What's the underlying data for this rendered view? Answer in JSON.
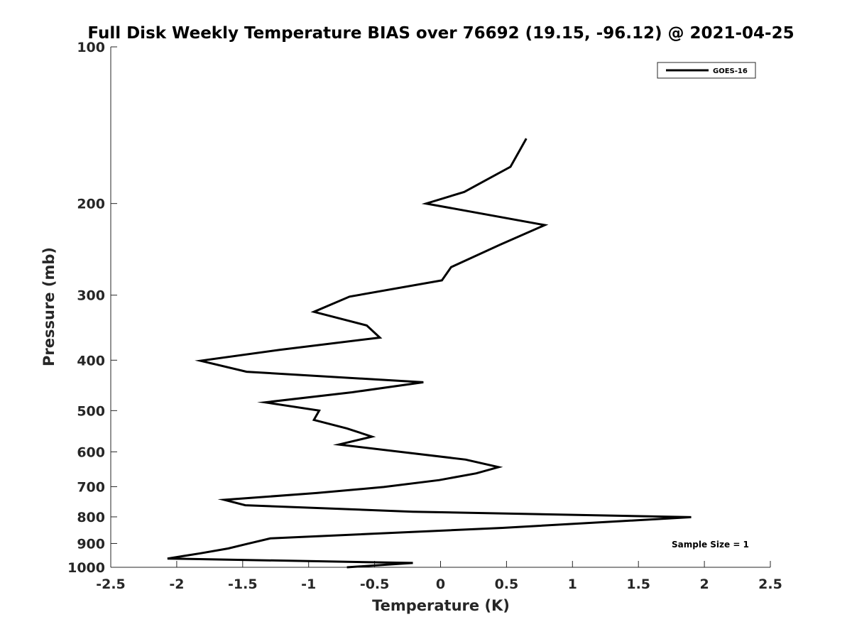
{
  "chart_data": {
    "type": "line",
    "title": "Full Disk Weekly Temperature BIAS over 76692 (19.15, -96.12) @ 2021-04-25",
    "xlabel": "Temperature (K)",
    "ylabel": "Pressure (mb)",
    "xlim": [
      -2.5,
      2.5
    ],
    "ylim": [
      100,
      1000
    ],
    "y_scale": "log",
    "y_reversed": true,
    "x_ticks": [
      "-2.5",
      "-2",
      "-1.5",
      "-1",
      "-0.5",
      "0",
      "0.5",
      "1",
      "1.5",
      "2",
      "2.5"
    ],
    "y_ticks": [
      "100",
      "200",
      "300",
      "400",
      "500",
      "600",
      "700",
      "800",
      "900",
      "1000"
    ],
    "grid": false,
    "legend_position": "top-right",
    "series": [
      {
        "name": "GOES-16",
        "color": "#000000",
        "points": [
          {
            "x": 0.65,
            "y": 150
          },
          {
            "x": 0.53,
            "y": 170
          },
          {
            "x": 0.18,
            "y": 190
          },
          {
            "x": -0.11,
            "y": 200
          },
          {
            "x": 0.79,
            "y": 220
          },
          {
            "x": 0.45,
            "y": 240
          },
          {
            "x": 0.08,
            "y": 265
          },
          {
            "x": 0.01,
            "y": 281
          },
          {
            "x": -0.69,
            "y": 302
          },
          {
            "x": -0.96,
            "y": 323
          },
          {
            "x": -0.56,
            "y": 343
          },
          {
            "x": -0.46,
            "y": 362
          },
          {
            "x": -1.22,
            "y": 382
          },
          {
            "x": -1.82,
            "y": 401
          },
          {
            "x": -1.47,
            "y": 421
          },
          {
            "x": -0.13,
            "y": 441
          },
          {
            "x": -0.67,
            "y": 461
          },
          {
            "x": -1.33,
            "y": 482
          },
          {
            "x": -0.92,
            "y": 500
          },
          {
            "x": -0.96,
            "y": 521
          },
          {
            "x": -0.71,
            "y": 541
          },
          {
            "x": -0.52,
            "y": 561
          },
          {
            "x": -0.77,
            "y": 581
          },
          {
            "x": 0.19,
            "y": 621
          },
          {
            "x": 0.44,
            "y": 642
          },
          {
            "x": 0.27,
            "y": 660
          },
          {
            "x": -0.01,
            "y": 680
          },
          {
            "x": -0.43,
            "y": 701
          },
          {
            "x": -0.94,
            "y": 720
          },
          {
            "x": -1.64,
            "y": 742
          },
          {
            "x": -1.48,
            "y": 760
          },
          {
            "x": -0.21,
            "y": 782
          },
          {
            "x": 1.9,
            "y": 801
          },
          {
            "x": 0.47,
            "y": 840
          },
          {
            "x": -1.29,
            "y": 880
          },
          {
            "x": -1.47,
            "y": 902
          },
          {
            "x": -1.61,
            "y": 920
          },
          {
            "x": -1.82,
            "y": 940
          },
          {
            "x": -2.07,
            "y": 962
          },
          {
            "x": -0.21,
            "y": 981
          },
          {
            "x": -0.71,
            "y": 1000
          }
        ]
      }
    ],
    "annotations": [
      "Sample Size = 1"
    ]
  }
}
